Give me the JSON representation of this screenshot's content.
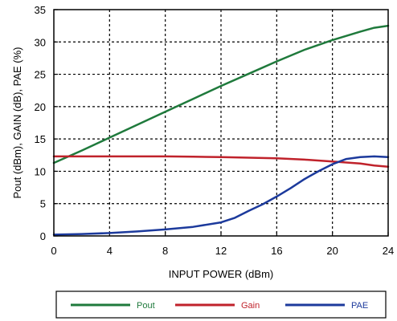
{
  "chart_data": {
    "type": "line",
    "title": "",
    "xlabel": "INPUT POWER (dBm)",
    "ylabel": "Pout (dBm), GAIN (dB), PAE (%)",
    "xlim": [
      0,
      24
    ],
    "ylim": [
      0,
      35
    ],
    "xticks": [
      0,
      4,
      8,
      12,
      16,
      20,
      24
    ],
    "yticks": [
      0,
      5,
      10,
      15,
      20,
      25,
      30,
      35
    ],
    "grid": true,
    "legend_position": "bottom",
    "series": [
      {
        "name": "Pout",
        "color": "#1f7a3c",
        "x": [
          0,
          2,
          4,
          6,
          8,
          10,
          12,
          14,
          16,
          18,
          20,
          22,
          23,
          24
        ],
        "y": [
          11.3,
          13.2,
          15.2,
          17.2,
          19.2,
          21.2,
          23.2,
          25.1,
          27.0,
          28.8,
          30.3,
          31.6,
          32.2,
          32.5
        ]
      },
      {
        "name": "Gain",
        "color": "#c0222b",
        "x": [
          0,
          2,
          4,
          6,
          8,
          10,
          12,
          14,
          16,
          18,
          20,
          22,
          23,
          24
        ],
        "y": [
          12.3,
          12.3,
          12.3,
          12.3,
          12.3,
          12.25,
          12.2,
          12.1,
          12.0,
          11.8,
          11.5,
          11.2,
          10.9,
          10.7
        ]
      },
      {
        "name": "PAE",
        "color": "#1c3a9c",
        "x": [
          0,
          2,
          4,
          6,
          8,
          10,
          12,
          13,
          14,
          15,
          16,
          17,
          18,
          19,
          20,
          21,
          22,
          23,
          24
        ],
        "y": [
          0.2,
          0.3,
          0.45,
          0.7,
          1.0,
          1.4,
          2.1,
          2.8,
          3.9,
          4.9,
          6.1,
          7.4,
          8.8,
          10.0,
          11.1,
          11.9,
          12.2,
          12.3,
          12.2
        ]
      }
    ]
  }
}
